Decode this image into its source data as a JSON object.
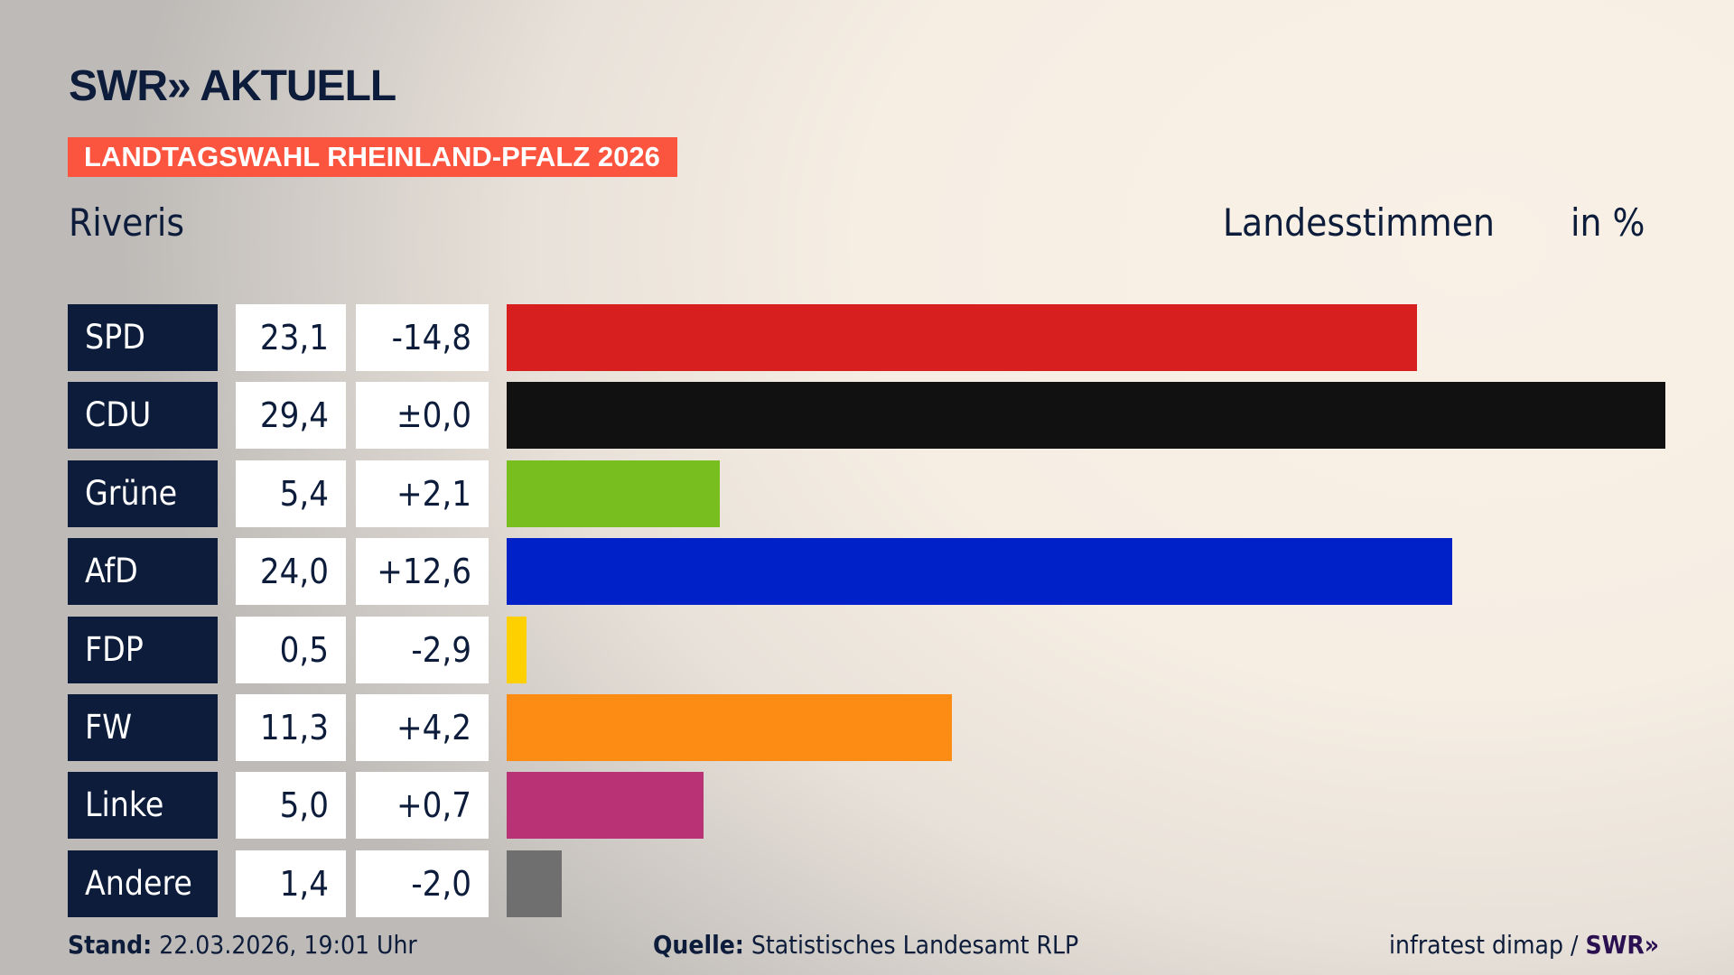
{
  "header": {
    "logo": "SWR» AKTUELL",
    "banner": "LANDTAGSWAHL RHEINLAND-PFALZ 2026",
    "region": "Riveris",
    "measure": "Landesstimmen",
    "unit": "in %"
  },
  "chart_data": {
    "type": "bar",
    "orientation": "horizontal",
    "xlim": [
      0,
      29.4
    ],
    "columns": [
      "Partei",
      "Anteil",
      "Differenz"
    ],
    "categories": [
      "SPD",
      "CDU",
      "Grüne",
      "AfD",
      "FDP",
      "FW",
      "Linke",
      "Andere"
    ],
    "values": [
      23.1,
      29.4,
      5.4,
      24.0,
      0.5,
      11.3,
      5.0,
      1.4
    ],
    "value_labels": [
      "23,1",
      "29,4",
      "5,4",
      "24,0",
      "0,5",
      "11,3",
      "5,0",
      "1,4"
    ],
    "diff_labels": [
      "-14,8",
      "±0,0",
      "+2,1",
      "+12,6",
      "-2,9",
      "+4,2",
      "+0,7",
      "-2,0"
    ],
    "colors": [
      "#d81f1f",
      "#111111",
      "#78be1e",
      "#0021c8",
      "#ffd000",
      "#fd8c14",
      "#b93276",
      "#6f6f6f"
    ]
  },
  "footer": {
    "stand_label": "Stand:",
    "stand_value": "22.03.2026, 19:01 Uhr",
    "source_label": "Quelle:",
    "source_value": "Statistisches Landesamt RLP",
    "credit": "infratest dimap /",
    "credit_logo": "SWR»"
  }
}
